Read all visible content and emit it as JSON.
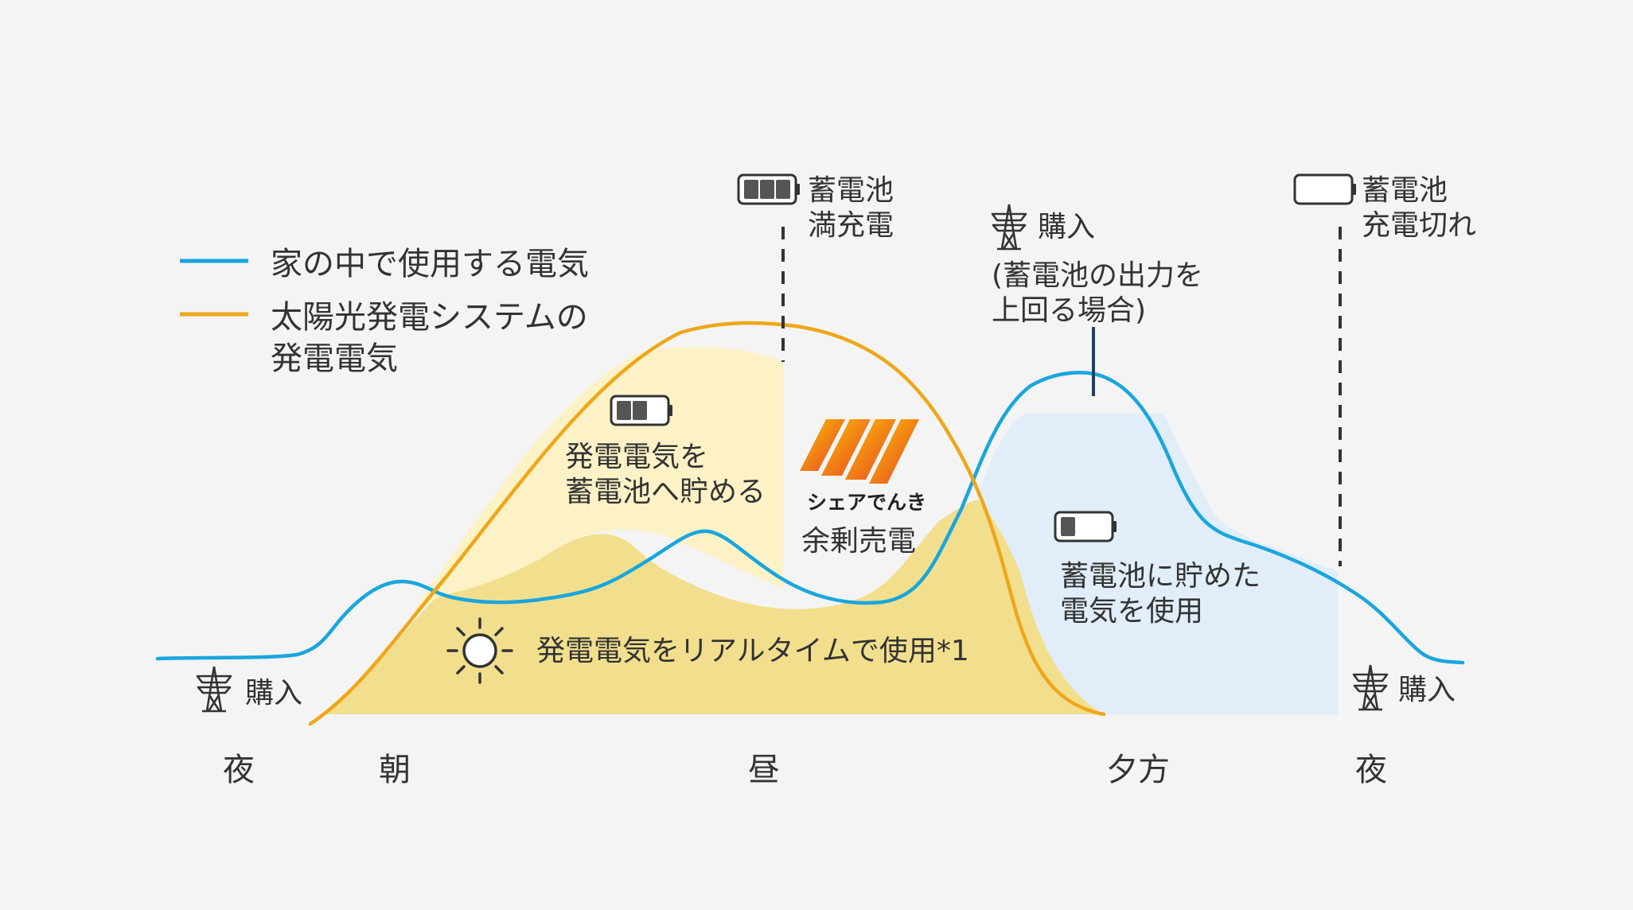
{
  "legend": {
    "home_usage": "家の中で使用する電気",
    "solar_line1": "太陽光発電システムの",
    "solar_line2": "発電電気"
  },
  "labels": {
    "battery_full_line1": "蓄電池",
    "battery_full_line2": "満充電",
    "battery_empty_line1": "蓄電池",
    "battery_empty_line2": "充電切れ",
    "purchase_evening": "購入",
    "purchase_evening_note1": "(蓄電池の出力を",
    "purchase_evening_note2": "上回る場合)",
    "charge_line1": "発電電気を",
    "charge_line2": "蓄電池へ貯める",
    "brand_name": "シェアでんき",
    "surplus_sale": "余剰売電",
    "discharge_line1": "蓄電池に貯めた",
    "discharge_line2": "電気を使用",
    "realtime_use": "発電電気をリアルタイムで使用*1",
    "purchase_left": "購入",
    "purchase_right": "購入"
  },
  "time_axis": [
    "夜",
    "朝",
    "昼",
    "夕方",
    "夜"
  ],
  "colors": {
    "home_usage_line": "#19a6dc",
    "solar_line": "#eea71b",
    "charge_area": "#fdf2c6",
    "realtime_area": "#f2df8e",
    "discharge_area": "#e1edf8",
    "dashed_marker": "#333333",
    "peak_marker": "#1e3f66"
  },
  "icons": [
    "battery-full-icon",
    "battery-empty-icon",
    "battery-two-thirds-icon",
    "battery-low-icon",
    "transmission-tower-icon",
    "sun-icon",
    "solar-panel-logo-icon"
  ]
}
